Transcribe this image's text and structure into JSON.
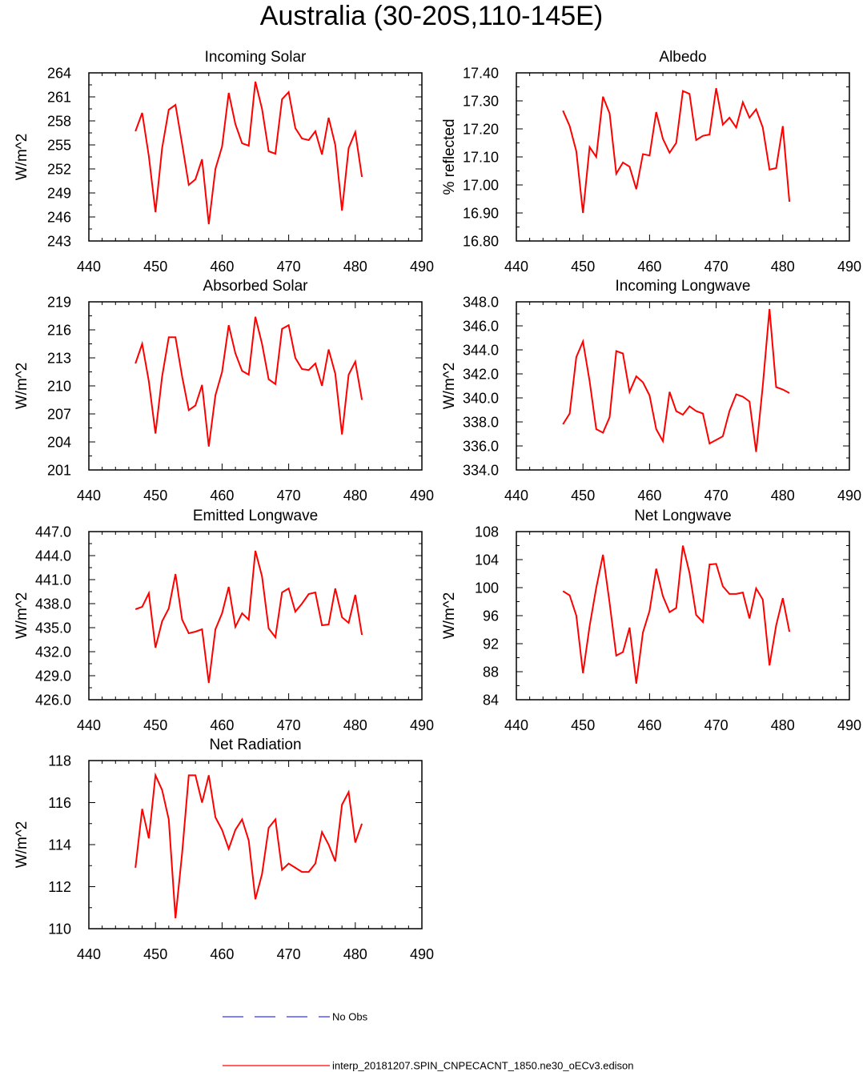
{
  "title": "Australia (30-20S,110-145E)",
  "legend": {
    "obs_label": "No Obs",
    "obs_color": "#3333ff",
    "model_label": "interp_20181207.SPIN_CNPECACNT_1850.ne30_oECv3.edison",
    "model_color": "#ff0000"
  },
  "chart_data": [
    {
      "type": "line",
      "title": "Incoming Solar",
      "ylabel": "W/m^2",
      "xlabel": "",
      "xlim": [
        440,
        490
      ],
      "ylim": [
        243,
        264
      ],
      "xticks": [
        "440",
        "450",
        "460",
        "470",
        "480",
        "490"
      ],
      "yticks": [
        "243",
        "246",
        "249",
        "252",
        "255",
        "258",
        "261",
        "264"
      ],
      "x": [
        447,
        448,
        449,
        450,
        451,
        452,
        453,
        454,
        455,
        456,
        457,
        458,
        459,
        460,
        461,
        462,
        463,
        464,
        465,
        466,
        467,
        468,
        469,
        470,
        471,
        472,
        473,
        474,
        475,
        476,
        477,
        478,
        479,
        480,
        481
      ],
      "series": [
        {
          "values": [
            256.7,
            259.0,
            253.6,
            246.6,
            254.6,
            259.4,
            260.0,
            255.1,
            250.0,
            250.7,
            253.2,
            245.1,
            252.0,
            254.8,
            261.5,
            257.6,
            255.2,
            254.9,
            262.9,
            259.5,
            254.2,
            253.9,
            260.7,
            261.6,
            257.1,
            255.8,
            255.6,
            256.7,
            253.8,
            258.4,
            255.0,
            246.8,
            254.6,
            256.6,
            251.0
          ],
          "color": "#ff0000"
        }
      ]
    },
    {
      "type": "line",
      "title": "Albedo",
      "ylabel": "% reflected",
      "xlabel": "",
      "xlim": [
        440,
        490
      ],
      "ylim": [
        16.8,
        17.4
      ],
      "xticks": [
        "440",
        "450",
        "460",
        "470",
        "480",
        "490"
      ],
      "yticks": [
        "16.80",
        "16.90",
        "17.00",
        "17.10",
        "17.20",
        "17.30",
        "17.40"
      ],
      "x": [
        447,
        448,
        449,
        450,
        451,
        452,
        453,
        454,
        455,
        456,
        457,
        458,
        459,
        460,
        461,
        462,
        463,
        464,
        465,
        466,
        467,
        468,
        469,
        470,
        471,
        472,
        473,
        474,
        475,
        476,
        477,
        478,
        479,
        480,
        481
      ],
      "series": [
        {
          "values": [
            17.265,
            17.21,
            17.12,
            16.9,
            17.135,
            17.1,
            17.315,
            17.255,
            17.04,
            17.08,
            17.065,
            16.985,
            17.11,
            17.105,
            17.26,
            17.165,
            17.115,
            17.15,
            17.335,
            17.325,
            17.16,
            17.175,
            17.18,
            17.345,
            17.215,
            17.24,
            17.205,
            17.295,
            17.24,
            17.27,
            17.205,
            17.055,
            17.06,
            17.21,
            16.94
          ],
          "color": "#ff0000"
        }
      ]
    },
    {
      "type": "line",
      "title": "Absorbed Solar",
      "ylabel": "W/m^2",
      "xlabel": "",
      "xlim": [
        440,
        490
      ],
      "ylim": [
        201,
        219
      ],
      "xticks": [
        "440",
        "450",
        "460",
        "470",
        "480",
        "490"
      ],
      "yticks": [
        "201",
        "204",
        "207",
        "210",
        "213",
        "216",
        "219"
      ],
      "x": [
        447,
        448,
        449,
        450,
        451,
        452,
        453,
        454,
        455,
        456,
        457,
        458,
        459,
        460,
        461,
        462,
        463,
        464,
        465,
        466,
        467,
        468,
        469,
        470,
        471,
        472,
        473,
        474,
        475,
        476,
        477,
        478,
        479,
        480,
        481
      ],
      "series": [
        {
          "values": [
            212.4,
            214.5,
            210.5,
            204.9,
            211.0,
            215.2,
            215.2,
            211.0,
            207.4,
            207.9,
            210.1,
            203.5,
            209.0,
            211.5,
            216.5,
            213.5,
            211.6,
            211.2,
            217.4,
            214.5,
            210.7,
            210.2,
            216.1,
            216.5,
            213.0,
            211.8,
            211.7,
            212.4,
            210.0,
            213.9,
            211.3,
            204.8,
            211.2,
            212.6,
            208.5
          ],
          "color": "#ff0000"
        }
      ]
    },
    {
      "type": "line",
      "title": "Incoming Longwave",
      "ylabel": "W/m^2",
      "xlabel": "",
      "xlim": [
        440,
        490
      ],
      "ylim": [
        334,
        348
      ],
      "xticks": [
        "440",
        "450",
        "460",
        "470",
        "480",
        "490"
      ],
      "yticks": [
        "334.0",
        "336.0",
        "338.0",
        "340.0",
        "342.0",
        "344.0",
        "346.0",
        "348.0"
      ],
      "x": [
        447,
        448,
        449,
        450,
        451,
        452,
        453,
        454,
        455,
        456,
        457,
        458,
        459,
        460,
        461,
        462,
        463,
        464,
        465,
        466,
        467,
        468,
        469,
        470,
        471,
        472,
        473,
        474,
        475,
        476,
        477,
        478,
        479,
        480,
        481
      ],
      "series": [
        {
          "values": [
            337.8,
            338.7,
            343.4,
            344.7,
            341.4,
            337.4,
            337.1,
            338.4,
            343.9,
            343.7,
            340.5,
            341.8,
            341.3,
            340.2,
            337.4,
            336.4,
            340.5,
            338.9,
            338.6,
            339.3,
            338.9,
            338.7,
            336.2,
            336.5,
            336.8,
            338.9,
            340.3,
            340.1,
            339.7,
            335.5,
            341.0,
            347.4,
            340.9,
            340.7,
            340.4
          ],
          "color": "#ff0000"
        }
      ]
    },
    {
      "type": "line",
      "title": "Emitted Longwave",
      "ylabel": "W/m^2",
      "xlabel": "",
      "xlim": [
        440,
        490
      ],
      "ylim": [
        426,
        447
      ],
      "xticks": [
        "440",
        "450",
        "460",
        "470",
        "480",
        "490"
      ],
      "yticks": [
        "426.0",
        "429.0",
        "432.0",
        "435.0",
        "438.0",
        "441.0",
        "444.0",
        "447.0"
      ],
      "x": [
        447,
        448,
        449,
        450,
        451,
        452,
        453,
        454,
        455,
        456,
        457,
        458,
        459,
        460,
        461,
        462,
        463,
        464,
        465,
        466,
        467,
        468,
        469,
        470,
        471,
        472,
        473,
        474,
        475,
        476,
        477,
        478,
        479,
        480,
        481
      ],
      "series": [
        {
          "values": [
            437.3,
            437.6,
            439.3,
            432.5,
            435.8,
            437.4,
            441.7,
            436.0,
            434.3,
            434.5,
            434.8,
            428.1,
            434.8,
            436.8,
            440.1,
            435.1,
            436.8,
            436.0,
            444.6,
            441.4,
            434.9,
            433.8,
            439.4,
            439.9,
            437.0,
            438.0,
            439.2,
            439.4,
            435.3,
            435.4,
            439.9,
            436.3,
            435.6,
            439.1,
            434.1
          ],
          "color": "#ff0000"
        }
      ]
    },
    {
      "type": "line",
      "title": "Net Longwave",
      "ylabel": "W/m^2",
      "xlabel": "",
      "xlim": [
        440,
        490
      ],
      "ylim": [
        84,
        108
      ],
      "xticks": [
        "440",
        "450",
        "460",
        "470",
        "480",
        "490"
      ],
      "yticks": [
        "84",
        "88",
        "92",
        "96",
        "100",
        "104",
        "108"
      ],
      "x": [
        447,
        448,
        449,
        450,
        451,
        452,
        453,
        454,
        455,
        456,
        457,
        458,
        459,
        460,
        461,
        462,
        463,
        464,
        465,
        466,
        467,
        468,
        469,
        470,
        471,
        472,
        473,
        474,
        475,
        476,
        477,
        478,
        479,
        480,
        481
      ],
      "series": [
        {
          "values": [
            99.5,
            98.9,
            96.0,
            87.8,
            94.5,
            100.0,
            104.7,
            97.8,
            90.3,
            90.8,
            94.3,
            86.3,
            93.6,
            96.7,
            102.7,
            98.8,
            96.5,
            97.1,
            106.0,
            102.1,
            96.1,
            95.1,
            103.3,
            103.4,
            100.2,
            99.1,
            99.1,
            99.3,
            95.6,
            99.9,
            98.3,
            88.9,
            94.6,
            98.5,
            93.7
          ],
          "color": "#ff0000"
        }
      ]
    },
    {
      "type": "line",
      "title": "Net Radiation",
      "ylabel": "W/m^2",
      "xlabel": "",
      "xlim": [
        440,
        490
      ],
      "ylim": [
        110,
        118
      ],
      "xticks": [
        "440",
        "450",
        "460",
        "470",
        "480",
        "490"
      ],
      "yticks": [
        "110",
        "112",
        "114",
        "116",
        "118"
      ],
      "x": [
        447,
        448,
        449,
        450,
        451,
        452,
        453,
        454,
        455,
        456,
        457,
        458,
        459,
        460,
        461,
        462,
        463,
        464,
        465,
        466,
        467,
        468,
        469,
        470,
        471,
        472,
        473,
        474,
        475,
        476,
        477,
        478,
        479,
        480,
        481
      ],
      "series": [
        {
          "values": [
            112.9,
            115.7,
            114.3,
            117.3,
            116.6,
            115.2,
            110.5,
            113.6,
            117.3,
            117.3,
            116.0,
            117.3,
            115.3,
            114.7,
            113.8,
            114.7,
            115.2,
            114.2,
            111.4,
            112.6,
            114.8,
            115.2,
            112.8,
            113.1,
            112.9,
            112.7,
            112.7,
            113.1,
            114.6,
            114.0,
            113.2,
            115.9,
            116.5,
            114.1,
            115.0
          ],
          "color": "#ff0000"
        }
      ]
    }
  ]
}
